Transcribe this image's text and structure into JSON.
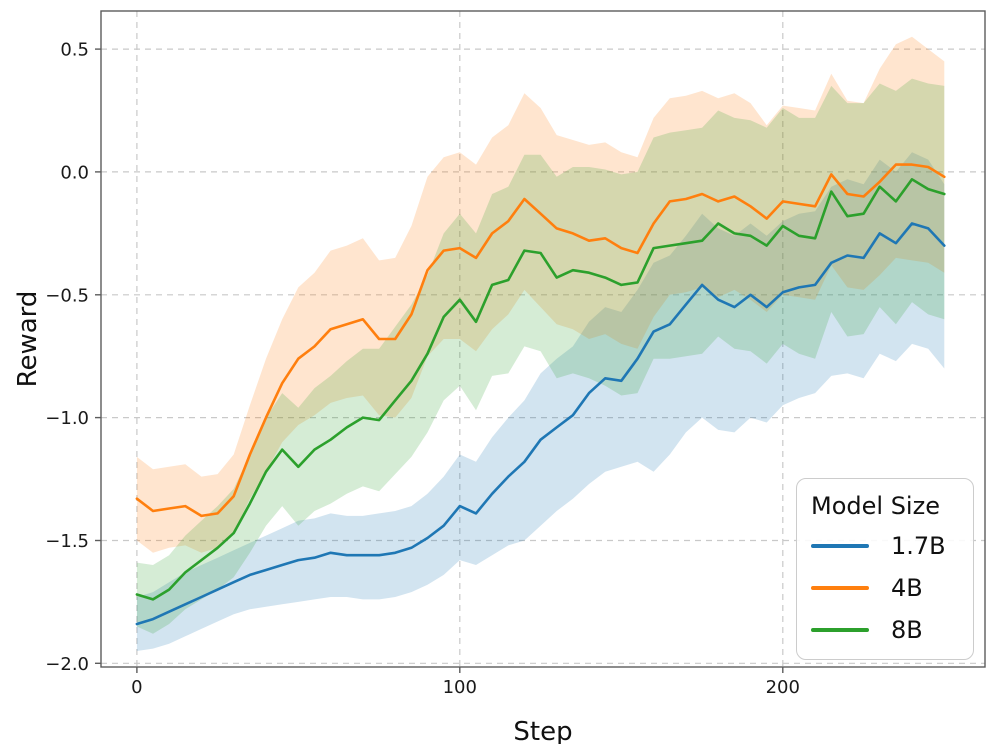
{
  "figure": {
    "background": "#ffffff"
  },
  "chart_data": {
    "type": "line",
    "title": "",
    "xlabel": "Step",
    "ylabel": "Reward",
    "xlim": [
      -11.1,
      262.6
    ],
    "ylim": [
      -2.015,
      0.655
    ],
    "grid": {
      "visible": true,
      "linestyle": "dashed",
      "color": "#c9c9c9"
    },
    "xticks": {
      "values": [
        0,
        100,
        200
      ],
      "labels": [
        "0",
        "100",
        "200"
      ]
    },
    "yticks": {
      "values": [
        0.5,
        0.0,
        -0.5,
        -1.0,
        -1.5,
        -2.0
      ],
      "labels": [
        "0.5",
        "0.0",
        "−0.5",
        "−1.0",
        "−1.5",
        "−2.0"
      ]
    },
    "legend": {
      "title": "Model Size",
      "position": "lower right"
    },
    "band_alpha": 0.2,
    "line_width": 2.6,
    "steps": [
      0,
      5,
      10,
      15,
      20,
      25,
      30,
      35,
      40,
      45,
      50,
      55,
      60,
      65,
      70,
      75,
      80,
      85,
      90,
      95,
      100,
      105,
      110,
      115,
      120,
      125,
      130,
      135,
      140,
      145,
      150,
      155,
      160,
      165,
      170,
      175,
      180,
      185,
      190,
      195,
      200,
      205,
      210,
      215,
      220,
      225,
      230,
      235,
      240,
      245,
      250
    ],
    "series": [
      {
        "name": "1.7B",
        "color": "#1f77b4",
        "mean": [
          -1.84,
          -1.82,
          -1.79,
          -1.76,
          -1.73,
          -1.7,
          -1.67,
          -1.64,
          -1.62,
          -1.6,
          -1.58,
          -1.57,
          -1.55,
          -1.56,
          -1.56,
          -1.56,
          -1.55,
          -1.53,
          -1.49,
          -1.44,
          -1.36,
          -1.39,
          -1.31,
          -1.24,
          -1.18,
          -1.09,
          -1.04,
          -0.99,
          -0.9,
          -0.84,
          -0.85,
          -0.76,
          -0.65,
          -0.62,
          -0.54,
          -0.46,
          -0.52,
          -0.55,
          -0.5,
          -0.55,
          -0.49,
          -0.47,
          -0.46,
          -0.37,
          -0.34,
          -0.35,
          -0.25,
          -0.29,
          -0.21,
          -0.23,
          -0.3
        ],
        "lo": [
          -1.95,
          -1.94,
          -1.92,
          -1.89,
          -1.86,
          -1.83,
          -1.8,
          -1.78,
          -1.77,
          -1.76,
          -1.75,
          -1.74,
          -1.73,
          -1.73,
          -1.74,
          -1.74,
          -1.73,
          -1.71,
          -1.68,
          -1.64,
          -1.58,
          -1.6,
          -1.56,
          -1.52,
          -1.5,
          -1.44,
          -1.38,
          -1.33,
          -1.27,
          -1.22,
          -1.2,
          -1.18,
          -1.22,
          -1.15,
          -1.06,
          -1.0,
          -1.05,
          -1.06,
          -1.0,
          -1.02,
          -0.95,
          -0.92,
          -0.9,
          -0.83,
          -0.82,
          -0.84,
          -0.74,
          -0.77,
          -0.7,
          -0.72,
          -0.8
        ],
        "hi": [
          -1.73,
          -1.71,
          -1.67,
          -1.63,
          -1.6,
          -1.57,
          -1.54,
          -1.51,
          -1.48,
          -1.45,
          -1.42,
          -1.41,
          -1.39,
          -1.4,
          -1.4,
          -1.39,
          -1.38,
          -1.36,
          -1.31,
          -1.24,
          -1.15,
          -1.18,
          -1.08,
          -1.0,
          -0.93,
          -0.82,
          -0.76,
          -0.71,
          -0.61,
          -0.55,
          -0.57,
          -0.48,
          -0.37,
          -0.34,
          -0.26,
          -0.17,
          -0.23,
          -0.26,
          -0.21,
          -0.26,
          -0.2,
          -0.17,
          -0.16,
          -0.06,
          -0.03,
          -0.05,
          0.05,
          0.0,
          0.08,
          0.05,
          -0.05
        ]
      },
      {
        "name": "4B",
        "color": "#ff7f0e",
        "mean": [
          -1.33,
          -1.38,
          -1.37,
          -1.36,
          -1.4,
          -1.39,
          -1.32,
          -1.15,
          -1.0,
          -0.86,
          -0.76,
          -0.71,
          -0.64,
          -0.62,
          -0.6,
          -0.68,
          -0.68,
          -0.58,
          -0.4,
          -0.32,
          -0.31,
          -0.35,
          -0.25,
          -0.2,
          -0.11,
          -0.17,
          -0.23,
          -0.25,
          -0.28,
          -0.27,
          -0.31,
          -0.33,
          -0.21,
          -0.12,
          -0.11,
          -0.09,
          -0.12,
          -0.1,
          -0.14,
          -0.19,
          -0.12,
          -0.13,
          -0.14,
          -0.01,
          -0.09,
          -0.1,
          -0.04,
          0.03,
          0.03,
          0.02,
          -0.02
        ],
        "lo": [
          -1.5,
          -1.55,
          -1.53,
          -1.52,
          -1.55,
          -1.53,
          -1.47,
          -1.33,
          -1.22,
          -1.1,
          -1.03,
          -0.99,
          -0.94,
          -0.92,
          -0.91,
          -0.99,
          -1.0,
          -0.92,
          -0.75,
          -0.68,
          -0.68,
          -0.73,
          -0.64,
          -0.58,
          -0.48,
          -0.55,
          -0.62,
          -0.64,
          -0.68,
          -0.66,
          -0.7,
          -0.72,
          -0.59,
          -0.5,
          -0.49,
          -0.47,
          -0.51,
          -0.48,
          -0.52,
          -0.57,
          -0.5,
          -0.51,
          -0.52,
          -0.38,
          -0.47,
          -0.48,
          -0.42,
          -0.35,
          -0.36,
          -0.37,
          -0.41
        ],
        "hi": [
          -1.16,
          -1.21,
          -1.2,
          -1.19,
          -1.24,
          -1.23,
          -1.15,
          -0.95,
          -0.76,
          -0.6,
          -0.47,
          -0.41,
          -0.32,
          -0.3,
          -0.27,
          -0.36,
          -0.35,
          -0.22,
          -0.02,
          0.06,
          0.08,
          0.03,
          0.14,
          0.19,
          0.32,
          0.26,
          0.15,
          0.13,
          0.11,
          0.12,
          0.08,
          0.06,
          0.22,
          0.3,
          0.31,
          0.33,
          0.3,
          0.32,
          0.28,
          0.19,
          0.27,
          0.26,
          0.25,
          0.4,
          0.29,
          0.28,
          0.42,
          0.52,
          0.55,
          0.5,
          0.45
        ]
      },
      {
        "name": "8B",
        "color": "#2ca02c",
        "mean": [
          -1.72,
          -1.74,
          -1.7,
          -1.63,
          -1.58,
          -1.53,
          -1.47,
          -1.35,
          -1.22,
          -1.13,
          -1.2,
          -1.13,
          -1.09,
          -1.04,
          -1.0,
          -1.01,
          -0.93,
          -0.85,
          -0.74,
          -0.59,
          -0.52,
          -0.61,
          -0.46,
          -0.44,
          -0.32,
          -0.33,
          -0.43,
          -0.4,
          -0.41,
          -0.43,
          -0.46,
          -0.45,
          -0.31,
          -0.3,
          -0.29,
          -0.28,
          -0.21,
          -0.25,
          -0.26,
          -0.3,
          -0.22,
          -0.26,
          -0.27,
          -0.08,
          -0.18,
          -0.17,
          -0.06,
          -0.12,
          -0.03,
          -0.07,
          -0.09
        ],
        "lo": [
          -1.85,
          -1.88,
          -1.84,
          -1.78,
          -1.74,
          -1.7,
          -1.65,
          -1.55,
          -1.44,
          -1.36,
          -1.44,
          -1.38,
          -1.35,
          -1.31,
          -1.28,
          -1.3,
          -1.23,
          -1.16,
          -1.06,
          -0.93,
          -0.87,
          -0.97,
          -0.83,
          -0.82,
          -0.71,
          -0.73,
          -0.84,
          -0.82,
          -0.84,
          -0.87,
          -0.91,
          -0.9,
          -0.76,
          -0.76,
          -0.75,
          -0.74,
          -0.67,
          -0.72,
          -0.73,
          -0.78,
          -0.7,
          -0.74,
          -0.76,
          -0.57,
          -0.67,
          -0.66,
          -0.55,
          -0.62,
          -0.53,
          -0.58,
          -0.6
        ],
        "hi": [
          -1.59,
          -1.6,
          -1.56,
          -1.48,
          -1.42,
          -1.36,
          -1.29,
          -1.15,
          -1.0,
          -0.9,
          -0.96,
          -0.88,
          -0.83,
          -0.77,
          -0.72,
          -0.72,
          -0.63,
          -0.54,
          -0.42,
          -0.25,
          -0.17,
          -0.25,
          -0.09,
          -0.06,
          0.07,
          0.07,
          -0.02,
          0.02,
          0.02,
          0.01,
          -0.01,
          0.0,
          0.14,
          0.16,
          0.17,
          0.18,
          0.25,
          0.22,
          0.21,
          0.18,
          0.26,
          0.22,
          0.22,
          0.35,
          0.28,
          0.28,
          0.36,
          0.33,
          0.38,
          0.36,
          0.35
        ]
      }
    ]
  }
}
